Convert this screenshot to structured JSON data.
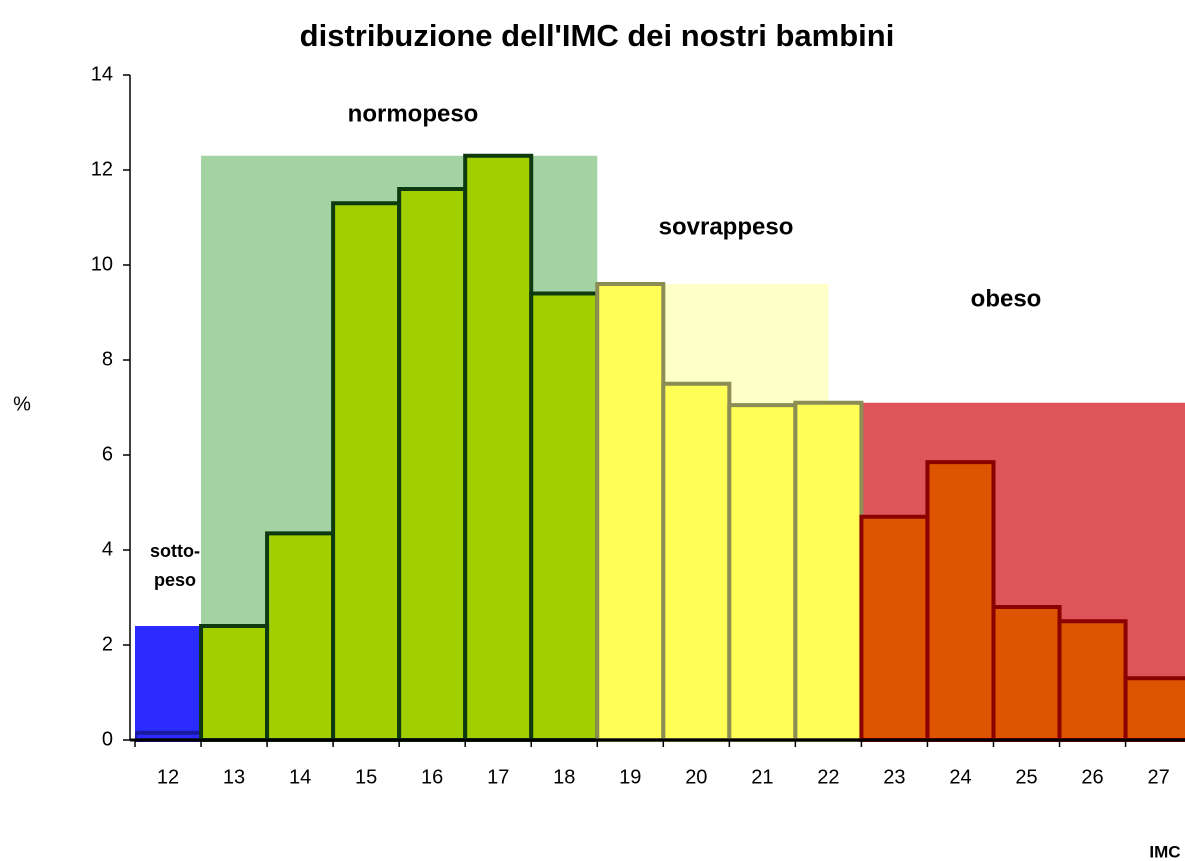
{
  "chart_data": {
    "type": "bar",
    "title": "distribuzione dell'IMC dei nostri bambini",
    "xlabel": "IMC",
    "ylabel": "%",
    "x": [
      12,
      13,
      14,
      15,
      16,
      17,
      18,
      19,
      20,
      21,
      22,
      23,
      24,
      25,
      26,
      27
    ],
    "values": [
      0.15,
      2.4,
      4.35,
      11.3,
      11.6,
      12.3,
      9.4,
      9.6,
      7.5,
      7.05,
      7.1,
      4.7,
      5.85,
      2.8,
      2.5,
      1.3
    ],
    "colors": [
      "#2b2bff",
      "#a2cf00",
      "#a2cf00",
      "#a2cf00",
      "#a2cf00",
      "#a2cf00",
      "#a2cf00",
      "#ffff55",
      "#ffff55",
      "#ffff55",
      "#ffff55",
      "#dd5500",
      "#dd5500",
      "#dd5500",
      "#dd5500",
      "#dd5500"
    ],
    "edgecolors": [
      "#1a1aa0",
      "#0f3a0f",
      "#0f3a0f",
      "#0f3a0f",
      "#0f3a0f",
      "#0f3a0f",
      "#0f3a0f",
      "#8c8c55",
      "#8c8c55",
      "#8c8c55",
      "#8c8c55",
      "#8b0000",
      "#8b0000",
      "#8b0000",
      "#8b0000",
      "#8b0000"
    ],
    "zones": [
      {
        "label": [
          "sotto-",
          "peso"
        ],
        "from": 11.5,
        "to": 12.5,
        "height": 2.4,
        "color": "#2b2bff"
      },
      {
        "label": [
          "normopeso"
        ],
        "from": 12.5,
        "to": 18.5,
        "height": 12.3,
        "color": "#a3d3a3"
      },
      {
        "label": [
          "sovrappeso"
        ],
        "from": 18.5,
        "to": 22,
        "height": 9.6,
        "color": "#ffffc8"
      },
      {
        "label": [
          "obeso"
        ],
        "from": 22,
        "to": 27.5,
        "height": 7.1,
        "color": "#de5459"
      }
    ],
    "xlim": [
      11.5,
      27.4
    ],
    "ylim": [
      0,
      14
    ],
    "yticks": [
      0,
      2,
      4,
      6,
      8,
      10,
      12,
      14
    ]
  }
}
